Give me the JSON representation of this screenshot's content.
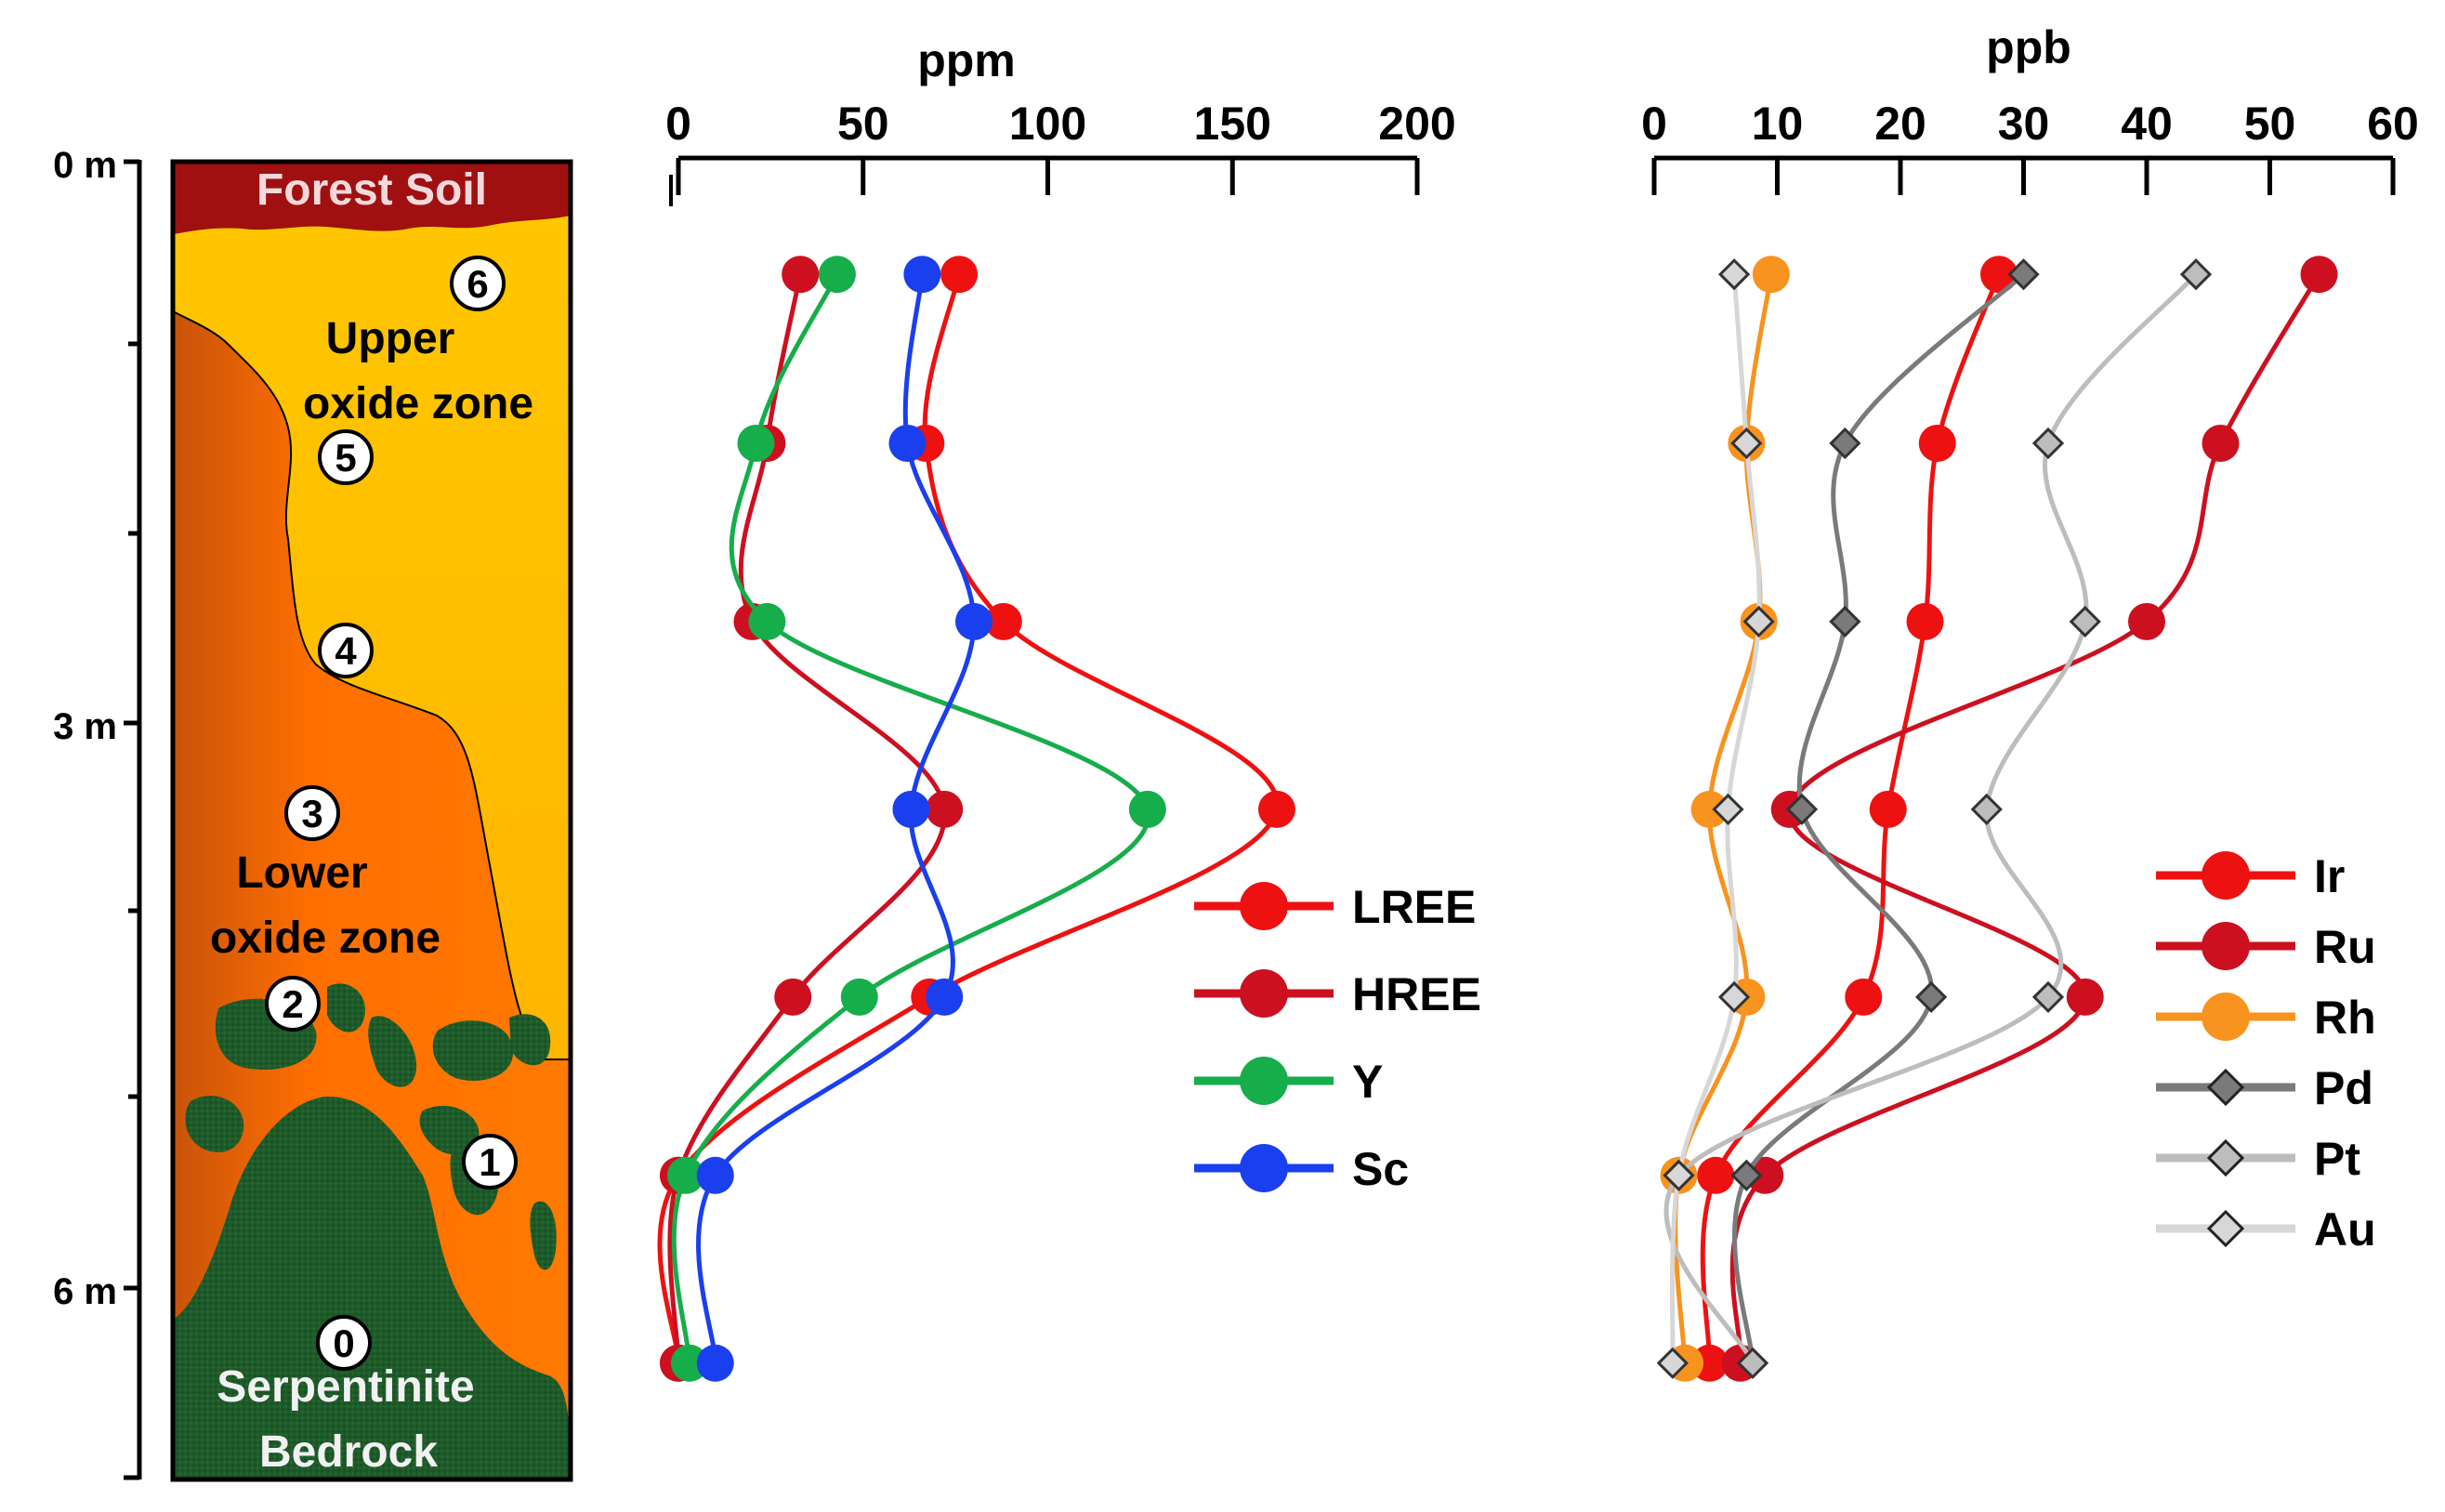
{
  "profile": {
    "depth_ticks": [
      "0 m",
      "3 m",
      "6 m"
    ],
    "zones": {
      "forest_soil": "Forest Soil",
      "upper_oxide": [
        "Upper",
        "oxide zone"
      ],
      "lower_oxide": [
        "Lower",
        "oxide zone"
      ],
      "bedrock": [
        "Serpentinite",
        "Bedrock"
      ]
    },
    "samples": [
      "0",
      "1",
      "2",
      "3",
      "4",
      "5",
      "6"
    ],
    "colors": {
      "forest_soil": "#a01010",
      "upper_top": "#ffc400",
      "upper_bottom": "#ffb000",
      "lower": "#ff6f00",
      "lower_dark": "#c8520a",
      "bedrock": "#1e5a2a"
    }
  },
  "chart_data": [
    {
      "type": "line",
      "unit_label": "ppm",
      "xlim": [
        0,
        200
      ],
      "ticks": [
        "0",
        "50",
        "100",
        "150",
        "200"
      ],
      "tick_values": [
        0,
        50,
        100,
        150,
        200
      ],
      "depth_m": [
        0.6,
        1.5,
        2.45,
        3.45,
        4.45,
        5.4,
        6.4
      ],
      "series": [
        {
          "name": "LREE",
          "color": "#ee1111",
          "marker": "circle",
          "values": [
            76,
            67,
            88,
            162,
            68,
            0,
            0
          ]
        },
        {
          "name": "HREE",
          "color": "#cc1020",
          "marker": "circle",
          "values": [
            33,
            24,
            20,
            72,
            31,
            0,
            0
          ]
        },
        {
          "name": "Y",
          "color": "#16ad4b",
          "marker": "circle",
          "values": [
            43,
            21,
            24,
            127,
            49,
            2,
            3
          ]
        },
        {
          "name": "Sc",
          "color": "#1a3fee",
          "marker": "circle",
          "values": [
            66,
            62,
            80,
            63,
            72,
            10,
            10
          ]
        }
      ]
    },
    {
      "type": "line",
      "unit_label": "ppb",
      "xlim": [
        0,
        60
      ],
      "ticks": [
        "0",
        "10",
        "20",
        "30",
        "40",
        "50",
        "60"
      ],
      "tick_values": [
        0,
        10,
        20,
        30,
        40,
        50,
        60
      ],
      "depth_m": [
        0.6,
        1.5,
        2.45,
        3.45,
        4.45,
        5.4,
        6.4
      ],
      "series": [
        {
          "name": "Ir",
          "color": "#ee1111",
          "marker": "circle",
          "values": [
            28,
            23,
            22,
            19,
            17,
            5,
            4.5
          ]
        },
        {
          "name": "Ru",
          "color": "#cc1020",
          "marker": "circle",
          "values": [
            54,
            46,
            40,
            11,
            35,
            9,
            7
          ]
        },
        {
          "name": "Rh",
          "color": "#f7931e",
          "marker": "circle",
          "values": [
            9.5,
            7.5,
            8.5,
            4.5,
            7.5,
            2,
            2.5
          ]
        },
        {
          "name": "Pd",
          "color": "#7a7a7a",
          "marker": "diamond",
          "values": [
            30,
            15.5,
            15.5,
            12,
            22.5,
            7.5,
            8
          ]
        },
        {
          "name": "Pt",
          "color": "#bdbdbd",
          "marker": "diamond",
          "values": [
            44,
            32,
            35,
            27,
            32,
            2,
            8
          ]
        },
        {
          "name": "Au",
          "color": "#d7d7d7",
          "marker": "diamond",
          "values": [
            6.5,
            7.5,
            8.5,
            6,
            6.5,
            2,
            1.5
          ]
        }
      ]
    }
  ]
}
